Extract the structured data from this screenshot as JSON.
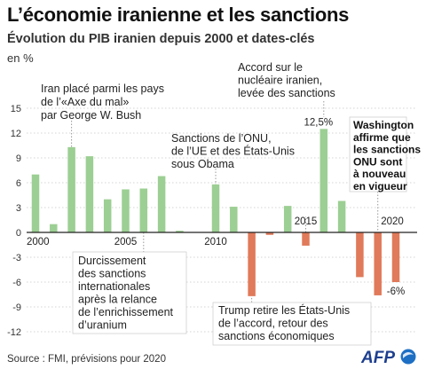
{
  "title": "L’économie iranienne et les sanctions",
  "subtitle": "Évolution du PIB iranien depuis 2000 et dates-clés",
  "unit": "en %",
  "source": "Source : FMI, prévisions pour 2020",
  "logo_text": "AFP",
  "colors": {
    "positive": "#9ccf93",
    "negative": "#e07a5a",
    "guide": "#999999"
  },
  "chart_data": {
    "type": "bar",
    "title": "L’économie iranienne et les sanctions",
    "subtitle": "Évolution du PIB iranien depuis 2000 et dates-clés",
    "ylabel": "en %",
    "ylim": [
      -12,
      15
    ],
    "yticks": [
      15,
      12,
      9,
      6,
      3,
      0,
      -3,
      -6,
      -9,
      -12
    ],
    "ytick_labels": [
      "15",
      "12",
      "9",
      "6",
      "3",
      "0",
      "-3",
      "-6",
      "-9",
      "-12"
    ],
    "x": [
      2000,
      2001,
      2002,
      2003,
      2004,
      2005,
      2006,
      2007,
      2008,
      2009,
      2010,
      2011,
      2012,
      2013,
      2014,
      2015,
      2016,
      2017,
      2018,
      2019,
      2020
    ],
    "values": [
      7.0,
      1.0,
      10.3,
      9.2,
      4.0,
      5.2,
      5.3,
      6.8,
      0.2,
      0.0,
      5.8,
      3.1,
      -7.7,
      -0.3,
      3.2,
      -1.6,
      12.5,
      3.8,
      -5.4,
      -7.6,
      -6.0
    ],
    "xtick_labels": [
      {
        "year": 2000,
        "label": "2000"
      },
      {
        "year": 2005,
        "label": "2005"
      },
      {
        "year": 2010,
        "label": "2010"
      },
      {
        "year": 2015,
        "label": "2015"
      },
      {
        "year": 2020,
        "label": "2020"
      }
    ],
    "data_labels": [
      {
        "year": 2016,
        "label": "12,5%"
      },
      {
        "year": 2020,
        "label": "-6%"
      }
    ],
    "annotations": [
      {
        "year": 2002,
        "lines": [
          "Iran placé parmi les pays",
          "de l’«Axe du mal»",
          "par George W. Bush"
        ],
        "bold": false
      },
      {
        "year": 2006,
        "lines": [
          "Durcissement",
          "des sanctions",
          "internationales",
          "après la relance",
          "de l’enrichissement",
          "d’uranium"
        ],
        "bold": false
      },
      {
        "year": 2010,
        "lines": [
          "Sanctions de l’ONU,",
          "de l’UE et des États-Unis",
          "sous Obama"
        ],
        "bold": false
      },
      {
        "year": 2012,
        "lines": [
          "Trump retire les États-Unis",
          "de l’accord, retour des",
          "sanctions économiques"
        ],
        "bold": false
      },
      {
        "year": 2016,
        "lines": [
          "Accord sur le",
          "nucléaire iranien,",
          "levée des sanctions"
        ],
        "bold": false
      },
      {
        "year": 2019,
        "lines": [
          "Washington",
          "affirme que",
          "les sanctions",
          "ONU sont",
          "à nouveau",
          "en vigueur"
        ],
        "bold": true
      }
    ]
  }
}
